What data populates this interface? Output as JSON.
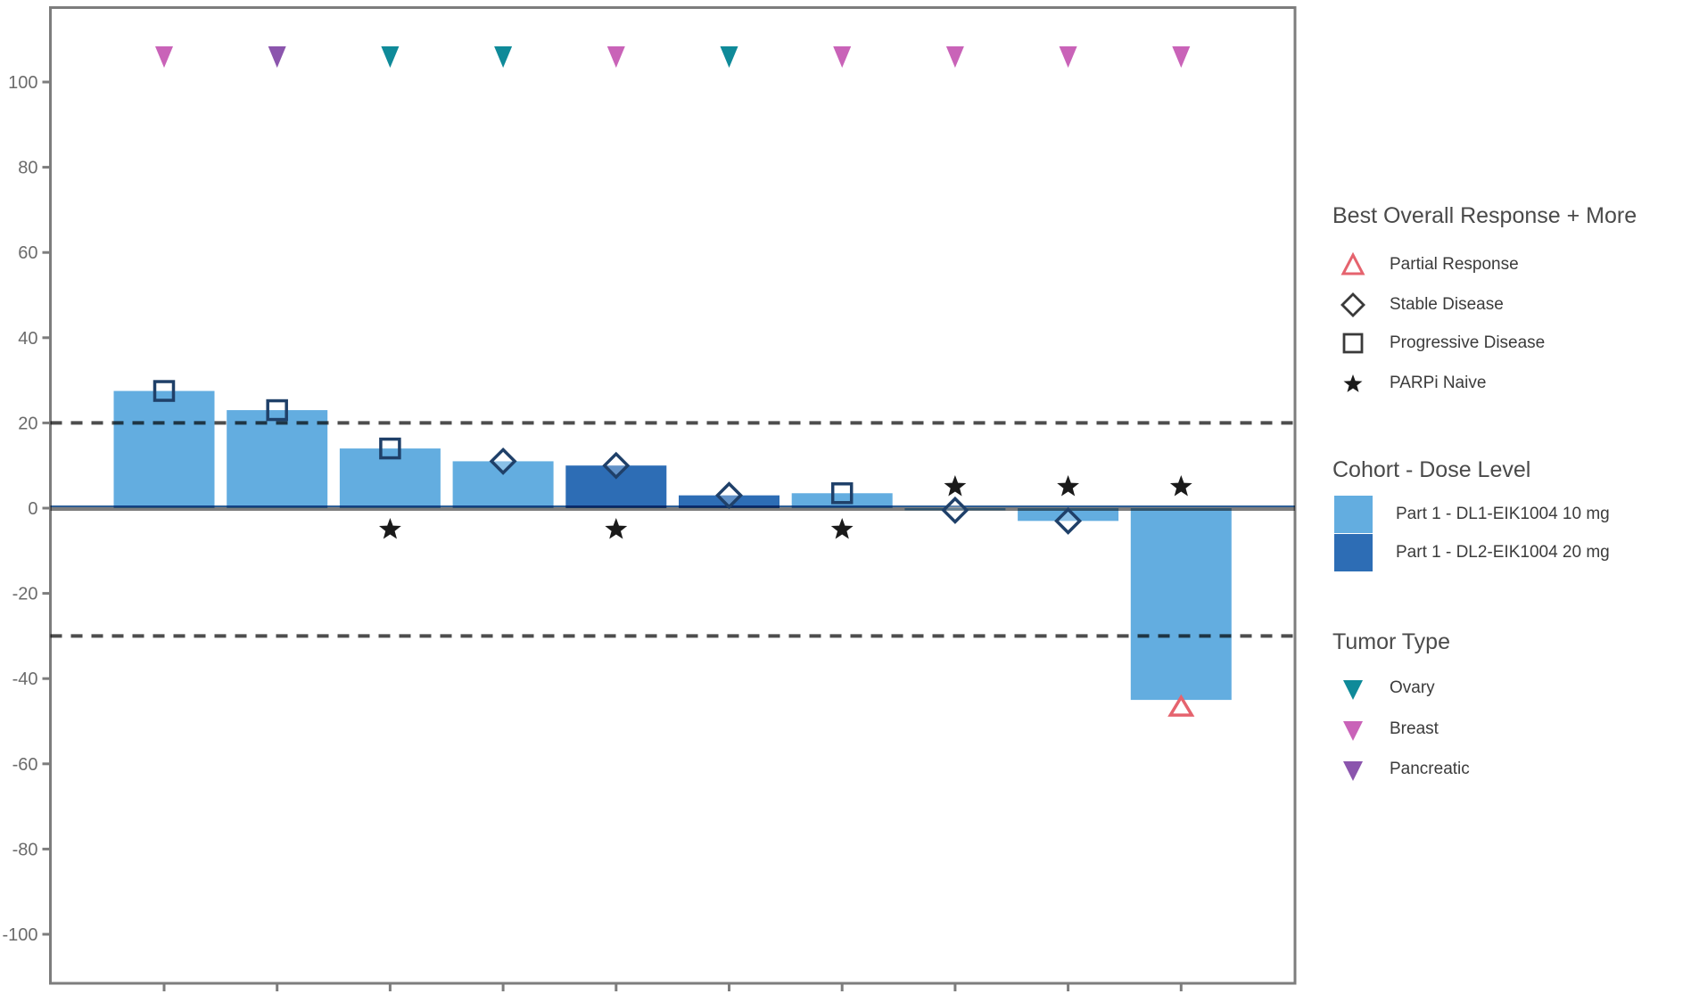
{
  "chart_data": {
    "type": "bar",
    "title": "",
    "xlabel": "",
    "ylabel": "",
    "ylim": [
      -112,
      118
    ],
    "yticks": [
      100,
      80,
      60,
      40,
      20,
      0,
      -20,
      -40,
      -60,
      -80,
      -100
    ],
    "grid": false,
    "reference_lines": [
      {
        "y": 20,
        "style": "dashed"
      },
      {
        "y": 0,
        "style": "solid"
      },
      {
        "y": -30,
        "style": "dashed"
      }
    ],
    "patients": [
      {
        "change": 27.5,
        "cohort": "Part 1 - DL1-EIK1004 10 mg",
        "tumor": "Breast",
        "response": "Progressive Disease",
        "parpi_naive": false
      },
      {
        "change": 23,
        "cohort": "Part 1 - DL1-EIK1004 10 mg",
        "tumor": "Pancreatic",
        "response": "Progressive Disease",
        "parpi_naive": false
      },
      {
        "change": 14,
        "cohort": "Part 1 - DL1-EIK1004 10 mg",
        "tumor": "Ovary",
        "response": "Progressive Disease",
        "parpi_naive": true
      },
      {
        "change": 11,
        "cohort": "Part 1 - DL1-EIK1004 10 mg",
        "tumor": "Ovary",
        "response": "Stable Disease",
        "parpi_naive": false
      },
      {
        "change": 10,
        "cohort": "Part 1 - DL2-EIK1004 20 mg",
        "tumor": "Breast",
        "response": "Stable Disease",
        "parpi_naive": true
      },
      {
        "change": 3,
        "cohort": "Part 1 - DL2-EIK1004 20 mg",
        "tumor": "Ovary",
        "response": "Stable Disease",
        "parpi_naive": false
      },
      {
        "change": 3.5,
        "cohort": "Part 1 - DL1-EIK1004 10 mg",
        "tumor": "Breast",
        "response": "Progressive Disease",
        "parpi_naive": true
      },
      {
        "change": -0.5,
        "cohort": "Part 1 - DL1-EIK1004 10 mg",
        "tumor": "Breast",
        "response": "Stable Disease",
        "parpi_naive": true
      },
      {
        "change": -3,
        "cohort": "Part 1 - DL1-EIK1004 10 mg",
        "tumor": "Breast",
        "response": "Stable Disease",
        "parpi_naive": true
      },
      {
        "change": -45,
        "cohort": "Part 1 - DL1-EIK1004 10 mg",
        "tumor": "Breast",
        "response": "Partial Response",
        "parpi_naive": true
      }
    ]
  },
  "legend": {
    "response": {
      "title": "Best Overall Response + More",
      "items": [
        {
          "label": "Partial Response",
          "marker": "open-triangle-up",
          "color": "#E5636E"
        },
        {
          "label": "Stable Disease",
          "marker": "open-diamond",
          "color": "#3a3a3a"
        },
        {
          "label": "Progressive Disease",
          "marker": "open-square",
          "color": "#3a3a3a"
        },
        {
          "label": "PARPi Naive",
          "marker": "star",
          "color": "#1a1a1a"
        }
      ]
    },
    "cohort": {
      "title": "Cohort - Dose Level",
      "items": [
        {
          "label": "Part 1 - DL1-EIK1004 10 mg",
          "color": "#63ADE0"
        },
        {
          "label": "Part 1 - DL2-EIK1004 20 mg",
          "color": "#2D6DB5"
        }
      ]
    },
    "tumor": {
      "title": "Tumor Type",
      "items": [
        {
          "label": "Ovary",
          "color": "#0F8A99"
        },
        {
          "label": "Breast",
          "color": "#C963B8"
        },
        {
          "label": "Pancreatic",
          "color": "#8B55AD"
        }
      ]
    }
  },
  "colors": {
    "cohort_light": "#63ADE0",
    "cohort_dark": "#2D6DB5",
    "ovary": "#0F8A99",
    "breast": "#C963B8",
    "pancreatic": "#8B55AD",
    "partial_response_marker": "#E5636E",
    "response_marker_outline": "#1F4069",
    "star": "#1a1a1a",
    "axis": "#7d7d7d",
    "tick_label": "#6b6b6b",
    "dashed_line": "#4d4d4d"
  }
}
